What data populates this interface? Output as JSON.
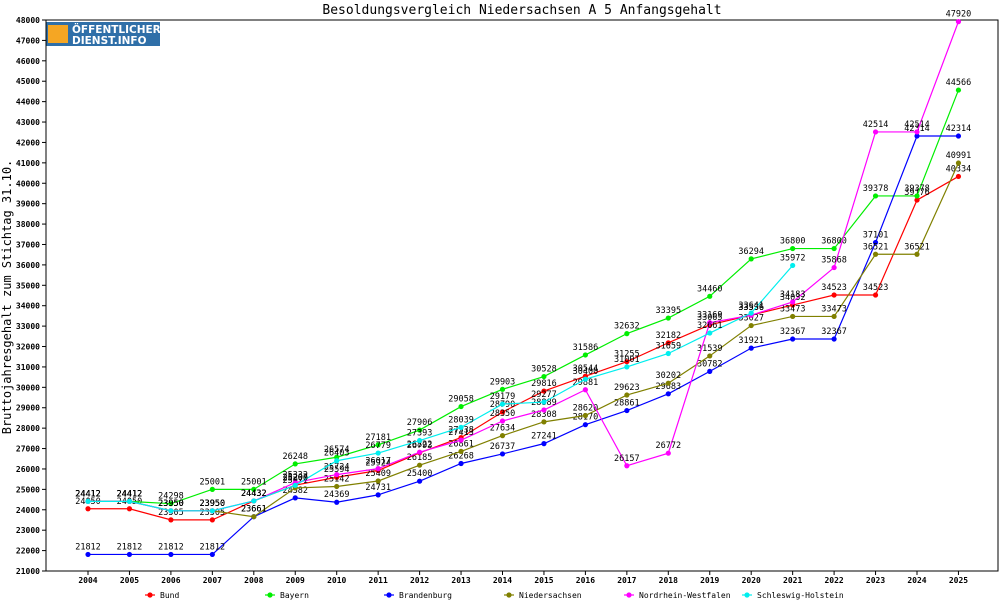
{
  "logo": {
    "line1": "ÖFFENTLICHER",
    "line2": "DIENST.INFO"
  },
  "chart_data": {
    "type": "line",
    "title": "Besoldungsvergleich Niedersachsen A 5 Anfangsgehalt",
    "xlabel": "",
    "ylabel": "Bruttojahresgehalt zum Stichtag 31.10.",
    "ylim": [
      21000,
      48000
    ],
    "ystep": 1000,
    "grid": false,
    "legend_position": "bottom",
    "x": [
      "2004",
      "2005",
      "2006",
      "2007",
      "2008",
      "2009",
      "2010",
      "2011",
      "2012",
      "2013",
      "2014",
      "2015",
      "2016",
      "2017",
      "2018",
      "2019",
      "2020",
      "2021",
      "2022",
      "2023",
      "2024",
      "2025"
    ],
    "series": [
      {
        "name": "Bund",
        "color": "#ff0000",
        "values": [
          24050,
          24050,
          23505,
          23505,
          24432,
          25207,
          25594,
          25924,
          26793,
          27538,
          28790,
          29816,
          30544,
          31255,
          32182,
          33065,
          33536,
          34032,
          34523,
          34523,
          39176,
          40334
        ]
      },
      {
        "name": "Bayern",
        "color": "#00ee00",
        "values": [
          24412,
          24412,
          24298,
          25001,
          25001,
          26248,
          26574,
          27181,
          27906,
          29058,
          29903,
          30528,
          31586,
          32632,
          33395,
          34460,
          36294,
          36800,
          36800,
          39378,
          39378,
          44566
        ]
      },
      {
        "name": "Brandenburg",
        "color": "#0000ff",
        "values": [
          21812,
          21812,
          21812,
          21812,
          23661,
          24582,
          24369,
          24731,
          25400,
          26268,
          26737,
          27241,
          28170,
          28861,
          29683,
          30782,
          31921,
          32367,
          32367,
          37101,
          42314,
          42314
        ]
      },
      {
        "name": "Niedersachsen",
        "color": "#808000",
        "values": [
          24412,
          24412,
          23950,
          23950,
          23661,
          25071,
          25142,
          25409,
          26185,
          26861,
          27634,
          28308,
          28620,
          29623,
          30202,
          31539,
          33027,
          33473,
          33473,
          36521,
          36521,
          40991
        ]
      },
      {
        "name": "Nordrhein-Westfalen",
        "color": "#ff00ff",
        "values": [
          24412,
          24412,
          23950,
          23950,
          24432,
          25332,
          25724,
          26017,
          26822,
          27413,
          28350,
          28889,
          29881,
          26157,
          26772,
          33169,
          33536,
          34183,
          35868,
          42514,
          42514,
          47920
        ]
      },
      {
        "name": "Schleswig-Holstein",
        "color": "#00eeee",
        "values": [
          24412,
          24412,
          23950,
          23950,
          24432,
          25200,
          26403,
          26779,
          27393,
          28039,
          29179,
          29277,
          30400,
          31001,
          31659,
          32661,
          33641,
          35972,
          null,
          null,
          null,
          null
        ]
      }
    ]
  }
}
